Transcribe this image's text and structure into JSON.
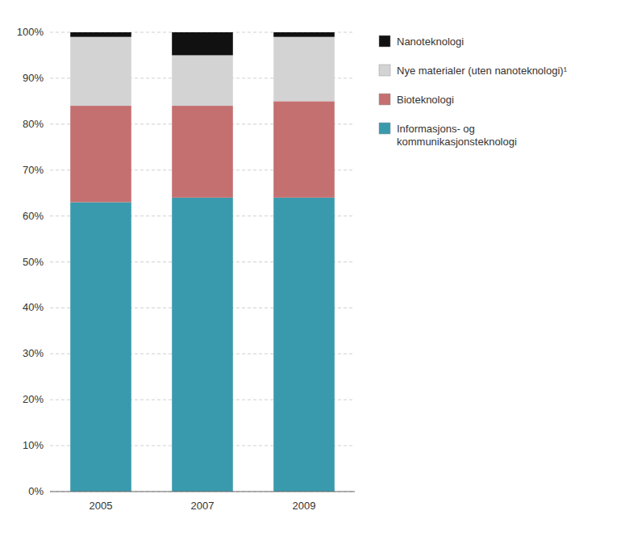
{
  "chart_data": {
    "type": "bar",
    "stacked": true,
    "categories": [
      "2005",
      "2007",
      "2009"
    ],
    "series": [
      {
        "name": "Informasjons- og\nkommunikasjonsteknologi",
        "color": "#3a9aad",
        "values": [
          63,
          64,
          64
        ]
      },
      {
        "name": "Bioteknologi",
        "color": "#c47070",
        "values": [
          21,
          20,
          21
        ]
      },
      {
        "name": "Nye materialer (uten nanoteknologi)¹",
        "color": "#d3d3d3",
        "values": [
          15,
          11,
          14
        ]
      },
      {
        "name": "Nanoteknologi",
        "color": "#111111",
        "values": [
          1,
          5,
          1
        ]
      }
    ],
    "ylim": [
      0,
      100
    ],
    "yticks": [
      {
        "value": 0,
        "label": "0%"
      },
      {
        "value": 10,
        "label": "10%"
      },
      {
        "value": 20,
        "label": "20%"
      },
      {
        "value": 30,
        "label": "30%"
      },
      {
        "value": 40,
        "label": "40%"
      },
      {
        "value": 50,
        "label": "50%"
      },
      {
        "value": 60,
        "label": "60%"
      },
      {
        "value": 70,
        "label": "70%"
      },
      {
        "value": 80,
        "label": "80%"
      },
      {
        "value": 90,
        "label": "90%"
      },
      {
        "value": 100,
        "label": "100%"
      }
    ],
    "grid": true,
    "legend": "right"
  }
}
